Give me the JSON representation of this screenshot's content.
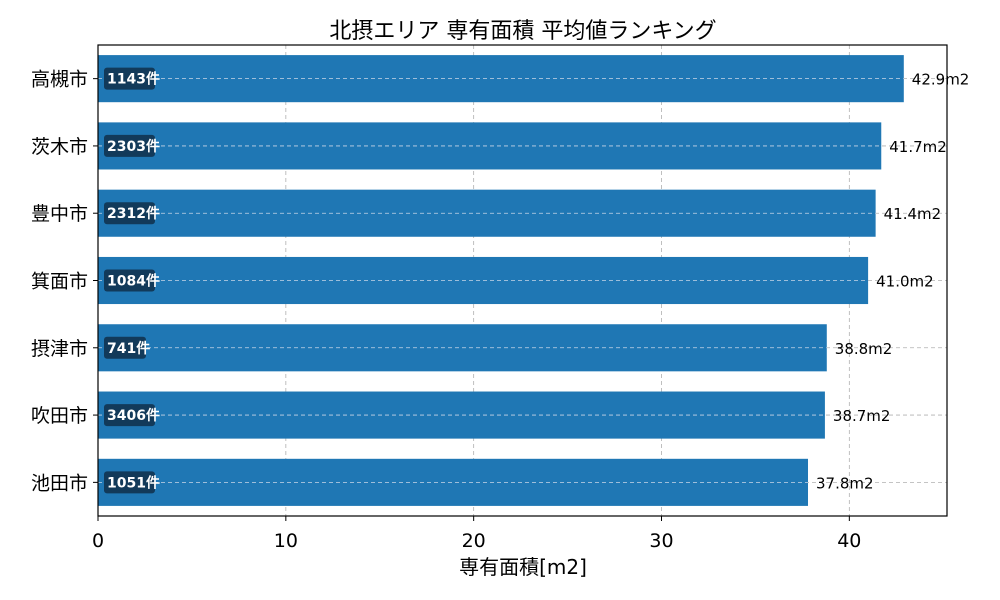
{
  "chart_data": {
    "type": "bar",
    "orientation": "horizontal",
    "title": "北摂エリア 専有面積 平均値ランキング",
    "xlabel": "専有面積[m2]",
    "ylabel": "",
    "xlim": [
      0,
      45.2
    ],
    "xticks": [
      0,
      10,
      20,
      30,
      40
    ],
    "grid": true,
    "bar_color": "#1f77b4",
    "count_box_color": "#123a5a",
    "categories": [
      "高槻市",
      "茨木市",
      "豊中市",
      "箕面市",
      "摂津市",
      "吹田市",
      "池田市"
    ],
    "values": [
      42.9,
      41.7,
      41.4,
      41.0,
      38.8,
      38.7,
      37.8
    ],
    "value_labels": [
      "42.9m2",
      "41.7m2",
      "41.4m2",
      "41.0m2",
      "38.8m2",
      "38.7m2",
      "37.8m2"
    ],
    "count_labels": [
      "1143件",
      "2303件",
      "2312件",
      "1084件",
      "741件",
      "3406件",
      "1051件"
    ]
  }
}
